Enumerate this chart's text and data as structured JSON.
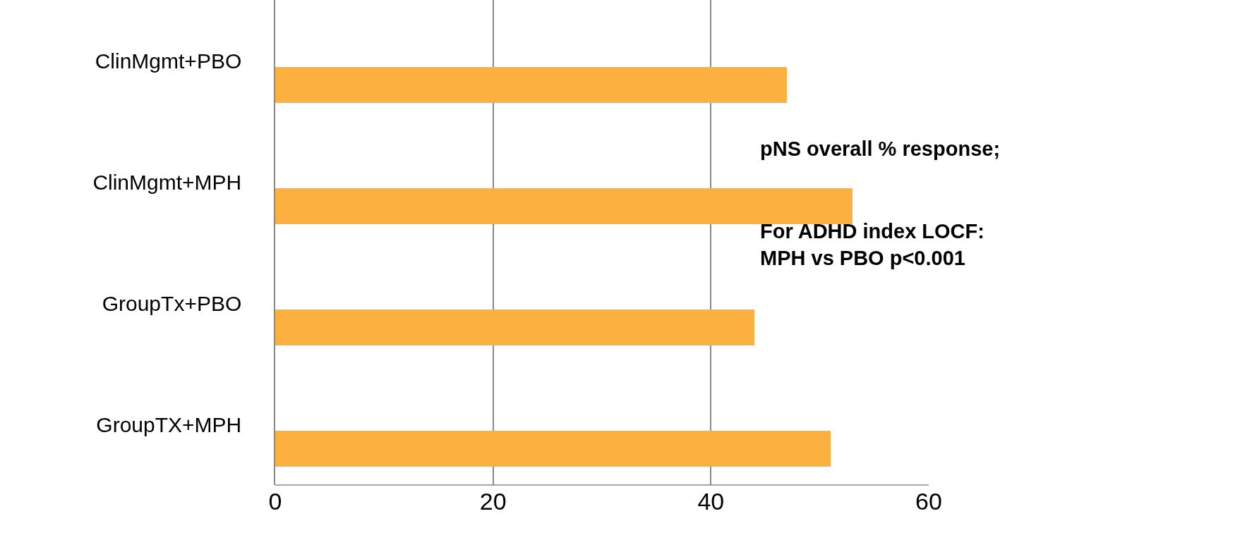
{
  "chart_data": {
    "type": "bar",
    "orientation": "horizontal",
    "categories": [
      "ClinMgmt+PBO",
      "ClinMgmt+MPH",
      "GroupTx+PBO",
      "GroupTX+MPH"
    ],
    "values": [
      47,
      53,
      44,
      51
    ],
    "color": "#fbb040",
    "xlim": [
      0,
      60
    ],
    "xticks": [
      0,
      20,
      40,
      60
    ],
    "grid": "x",
    "annotations": [
      "pNS overall % response;",
      "For ADHD index LOCF:\nMPH vs PBO p<0.001"
    ]
  }
}
